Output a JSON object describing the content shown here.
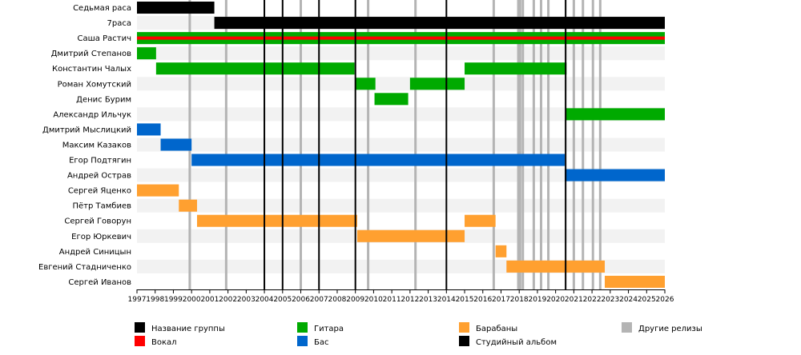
{
  "chart_data": {
    "type": "timeline",
    "title": "",
    "x_range": [
      1997,
      2026
    ],
    "x_ticks": [
      1997,
      1998,
      1999,
      2000,
      2001,
      2002,
      2003,
      2004,
      2005,
      2006,
      2007,
      2008,
      2009,
      2010,
      2011,
      2012,
      2013,
      2014,
      2015,
      2016,
      2017,
      2018,
      2019,
      2020,
      2021,
      2022,
      2023,
      2024,
      2025,
      2026
    ],
    "roles": [
      {
        "key": "band",
        "label": "Название группы",
        "color": "#000000"
      },
      {
        "key": "vocal",
        "label": "Вокал",
        "color": "#ff0000"
      },
      {
        "key": "guitar",
        "label": "Гитара",
        "color": "#00aa00"
      },
      {
        "key": "bass",
        "label": "Бас",
        "color": "#0066cc"
      },
      {
        "key": "drums",
        "label": "Барабаны",
        "color": "#ffa030"
      },
      {
        "key": "studio",
        "label": "Студийный альбом",
        "color": "#000000"
      },
      {
        "key": "other",
        "label": "Другие релизы",
        "color": "#b4b4b4"
      }
    ],
    "members": [
      {
        "name": "Седьмая раса",
        "bars": [
          {
            "role": "band",
            "start": 1997.0,
            "end": 2001.25
          }
        ]
      },
      {
        "name": "7раса",
        "bars": [
          {
            "role": "band",
            "start": 2001.25,
            "end": 2026.0
          }
        ]
      },
      {
        "name": "Саша Растич",
        "bars": [
          {
            "role": "guitar",
            "start": 1997.0,
            "end": 2026.0
          },
          {
            "role": "vocal",
            "start": 1997.0,
            "end": 2026.0,
            "thin": true
          }
        ]
      },
      {
        "name": "Дмитрий Степанов",
        "bars": [
          {
            "role": "guitar",
            "start": 1997.0,
            "end": 1998.05
          }
        ]
      },
      {
        "name": "Константин Чалых",
        "bars": [
          {
            "role": "guitar",
            "start": 1998.05,
            "end": 2008.95
          },
          {
            "role": "guitar",
            "start": 2015.0,
            "end": 2020.6
          }
        ]
      },
      {
        "name": "Роман Хомутский",
        "bars": [
          {
            "role": "guitar",
            "start": 2009.0,
            "end": 2010.1
          },
          {
            "role": "guitar",
            "start": 2012.0,
            "end": 2015.0
          }
        ]
      },
      {
        "name": "Денис Бурим",
        "bars": [
          {
            "role": "guitar",
            "start": 2010.05,
            "end": 2011.9
          }
        ]
      },
      {
        "name": "Александр Ильчук",
        "bars": [
          {
            "role": "guitar",
            "start": 2020.55,
            "end": 2026.0
          }
        ]
      },
      {
        "name": "Дмитрий Мыслицкий",
        "bars": [
          {
            "role": "bass",
            "start": 1997.0,
            "end": 1998.3
          }
        ]
      },
      {
        "name": "Максим Казаков",
        "bars": [
          {
            "role": "bass",
            "start": 1998.3,
            "end": 2000.0
          }
        ]
      },
      {
        "name": "Егор Подтягин",
        "bars": [
          {
            "role": "bass",
            "start": 2000.0,
            "end": 2020.5
          }
        ]
      },
      {
        "name": "Андрей Острав",
        "bars": [
          {
            "role": "bass",
            "start": 2020.5,
            "end": 2026.0
          }
        ]
      },
      {
        "name": "Сергей Яценко",
        "bars": [
          {
            "role": "drums",
            "start": 1997.0,
            "end": 1999.3
          }
        ]
      },
      {
        "name": "Пётр Тамбиев",
        "bars": [
          {
            "role": "drums",
            "start": 1999.3,
            "end": 2000.3
          }
        ]
      },
      {
        "name": "Сергей Говорун",
        "bars": [
          {
            "role": "drums",
            "start": 2000.3,
            "end": 2009.1
          },
          {
            "role": "drums",
            "start": 2015.0,
            "end": 2016.7
          }
        ]
      },
      {
        "name": "Егор Юркевич",
        "bars": [
          {
            "role": "drums",
            "start": 2009.1,
            "end": 2015.0
          }
        ]
      },
      {
        "name": "Андрей Синицын",
        "bars": [
          {
            "role": "drums",
            "start": 2016.7,
            "end": 2017.3
          }
        ]
      },
      {
        "name": "Евгений Стадниченко",
        "bars": [
          {
            "role": "drums",
            "start": 2017.3,
            "end": 2022.7
          }
        ]
      },
      {
        "name": "Сергей Иванов",
        "bars": [
          {
            "role": "drums",
            "start": 2022.7,
            "end": 2026.0
          }
        ]
      }
    ],
    "studio_albums": [
      2004.0,
      2005.0,
      2007.0,
      2009.0,
      2014.0,
      2020.55
    ],
    "other_releases": [
      1999.9,
      2001.9,
      2006.0,
      2009.7,
      2012.3,
      2016.6,
      2017.95,
      2018.05,
      2018.2,
      2018.8,
      2019.2,
      2019.6,
      2021.0,
      2021.5,
      2022.05,
      2022.45
    ]
  }
}
